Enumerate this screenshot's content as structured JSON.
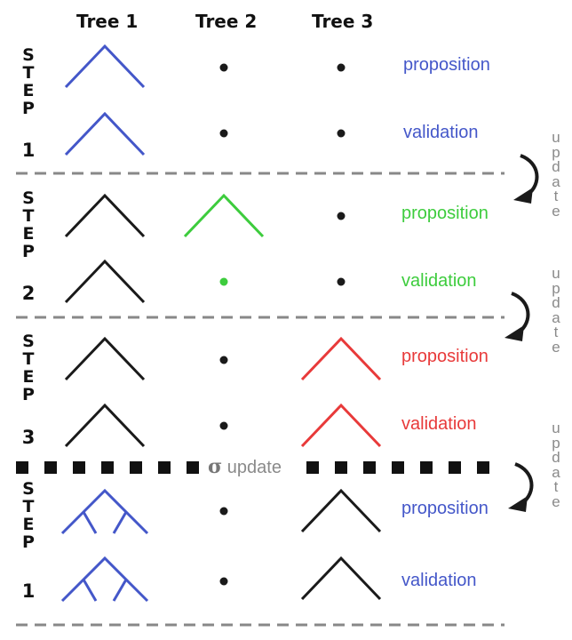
{
  "headers": [
    "Tree 1",
    "Tree 2",
    "Tree 3"
  ],
  "steps": [
    {
      "letters": [
        "S",
        "T",
        "E",
        "P"
      ],
      "number": "1",
      "rows": [
        {
          "label": "proposition",
          "color": "#4457c9",
          "cells": [
            "tree-blue",
            "dot",
            "dot"
          ]
        },
        {
          "label": "validation",
          "color": "#4457c9",
          "cells": [
            "tree-blue",
            "dot",
            "dot"
          ]
        }
      ]
    },
    {
      "letters": [
        "S",
        "T",
        "E",
        "P"
      ],
      "number": "2",
      "rows": [
        {
          "label": "proposition",
          "color": "#3dcc3d",
          "cells": [
            "tree-black",
            "tree-green",
            "dot"
          ]
        },
        {
          "label": "validation",
          "color": "#3dcc3d",
          "cells": [
            "tree-black",
            "dot-green",
            "dot"
          ]
        }
      ]
    },
    {
      "letters": [
        "S",
        "T",
        "E",
        "P"
      ],
      "number": "3",
      "rows": [
        {
          "label": "proposition",
          "color": "#e83a3a",
          "cells": [
            "tree-black",
            "dot",
            "tree-red"
          ]
        },
        {
          "label": "validation",
          "color": "#e83a3a",
          "cells": [
            "tree-black",
            "dot",
            "tree-red"
          ]
        }
      ]
    },
    {
      "letters": [
        "S",
        "T",
        "E",
        "P"
      ],
      "number": "1",
      "rows": [
        {
          "label": "proposition",
          "color": "#4457c9",
          "cells": [
            "big-tree-blue",
            "dot",
            "tree-black"
          ]
        },
        {
          "label": "validation",
          "color": "#4457c9",
          "cells": [
            "big-tree-blue",
            "dot",
            "tree-black"
          ]
        }
      ]
    }
  ],
  "update_letters": [
    "u",
    "p",
    "d",
    "a",
    "t",
    "e"
  ],
  "sigma_symbol": "σ",
  "sigma_text": "update",
  "colors": {
    "blue": "#4457c9",
    "green": "#3dcc3d",
    "red": "#e83a3a",
    "black": "#1a1a1a",
    "gray": "#888888"
  }
}
